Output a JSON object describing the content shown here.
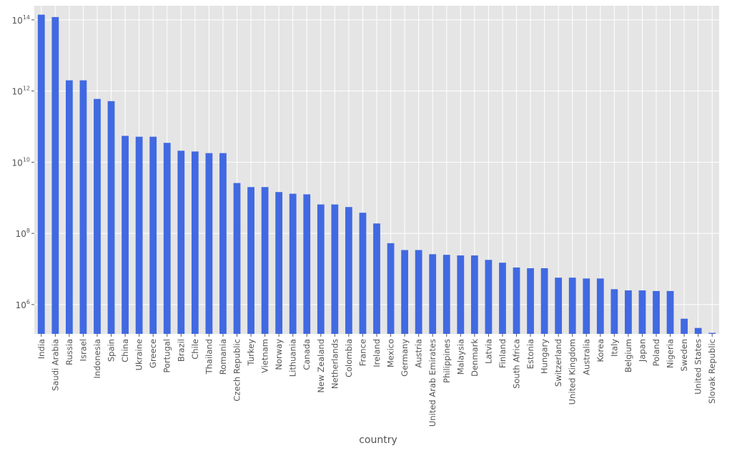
{
  "chart_data": {
    "type": "bar",
    "xlabel": "country",
    "ylabel": "",
    "title": "",
    "yscale": "log",
    "ylim": [
      150000,
      250000000000000
    ],
    "ytick_values": [
      1000000,
      100000000,
      10000000000,
      1000000000000,
      100000000000000
    ],
    "ytick_labels": [
      {
        "base": "10",
        "exp": "6"
      },
      {
        "base": "10",
        "exp": "8"
      },
      {
        "base": "10",
        "exp": "10"
      },
      {
        "base": "10",
        "exp": "12"
      },
      {
        "base": "10",
        "exp": "14"
      }
    ],
    "grid": true,
    "style": "ggplot",
    "bar_color": "#4169e1",
    "background_color": "#e5e5e5",
    "grid_color": "#ffffff",
    "categories": [
      "India",
      "Saudi Arabia",
      "Russia",
      "Israel",
      "Indonesia",
      "Spain",
      "China",
      "Ukraine",
      "Greece",
      "Portugal",
      "Brazil",
      "Chile",
      "Thailand",
      "Romania",
      "Czech Republic",
      "Turkey",
      "Vietnam",
      "Norway",
      "Lithuania",
      "Canada",
      "New Zealand",
      "Netherlands",
      "Colombia",
      "France",
      "Ireland",
      "Mexico",
      "Germany",
      "Austria",
      "United Arab Emirates",
      "Philippines",
      "Malaysia",
      "Denmark",
      "Latvia",
      "Finland",
      "South Africa",
      "Estonia",
      "Hungary",
      "Switzerland",
      "United Kingdom",
      "Australia",
      "Korea",
      "Italy",
      "Belgium",
      "Japan",
      "Poland",
      "Nigeria",
      "Sweden",
      "United States",
      "Slovak Republic"
    ],
    "values": [
      140000000000000,
      120000000000000,
      2000000000000,
      2000000000000,
      600000000000,
      520000000000,
      55000000000,
      52000000000,
      52000000000,
      35000000000,
      21000000000,
      20000000000,
      18000000000,
      18000000000,
      2600000000,
      2000000000,
      2000000000,
      1450000000,
      1300000000,
      1250000000,
      650000000,
      650000000,
      550000000,
      380000000,
      190000000,
      53000000,
      34000000,
      34000000,
      26000000,
      25000000,
      24000000,
      24000000,
      18000000,
      15000000,
      11000000,
      10500000,
      10500000,
      5700000,
      5700000,
      5400000,
      5400000,
      2700000,
      2500000,
      2500000,
      2400000,
      2400000,
      400000,
      220000,
      160000
    ]
  }
}
